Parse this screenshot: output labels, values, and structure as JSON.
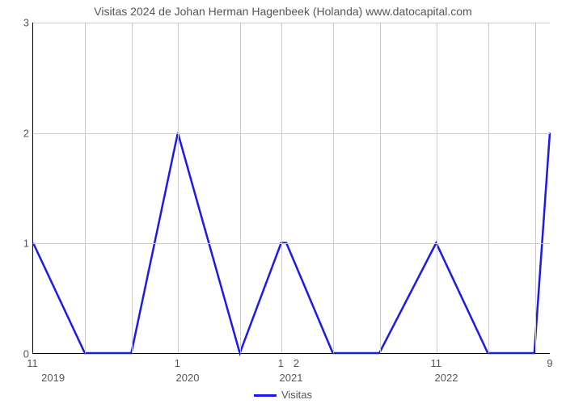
{
  "chart": {
    "type": "line",
    "title": "Visitas 2024 de Johan Herman Hagenbeek (Holanda) www.datocapital.com",
    "title_fontsize": 14,
    "title_color": "#555555",
    "background_color": "#ffffff",
    "grid_color": "#cccccc",
    "axis_color": "#000000",
    "line_color": "#1a1aee",
    "line_width": 2.5,
    "ylim": [
      0,
      3
    ],
    "ytick_step": 1,
    "yticks": [
      0,
      1,
      2,
      3
    ],
    "x_positions": [
      0,
      10,
      19,
      28,
      40,
      48,
      49,
      58,
      67,
      78,
      88,
      97,
      100
    ],
    "y_values": [
      1,
      0,
      0,
      2,
      0,
      1,
      1,
      0,
      0,
      1,
      0,
      0,
      2
    ],
    "x_minor_ticks": [
      {
        "pos": 0,
        "label": "11"
      },
      {
        "pos": 28,
        "label": "1"
      },
      {
        "pos": 48,
        "label": "1"
      },
      {
        "pos": 51,
        "label": "2"
      },
      {
        "pos": 78,
        "label": "11"
      },
      {
        "pos": 100,
        "label": "9"
      }
    ],
    "x_major_ticks": [
      {
        "pos": 4,
        "label": "2019"
      },
      {
        "pos": 30,
        "label": "2020"
      },
      {
        "pos": 50,
        "label": "2021"
      },
      {
        "pos": 80,
        "label": "2022"
      }
    ],
    "v_gridlines": [
      10,
      19,
      28,
      40,
      48,
      58,
      67,
      78,
      88,
      97
    ],
    "legend_label": "Visitas",
    "label_fontsize": 13,
    "label_color": "#555555"
  }
}
